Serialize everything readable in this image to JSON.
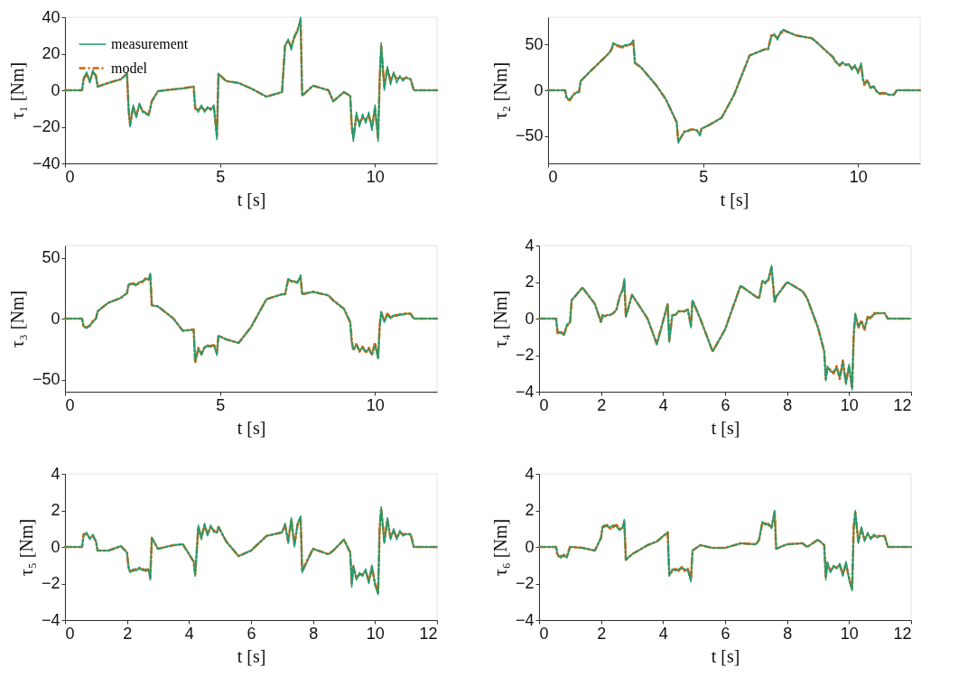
{
  "chart_data": [
    {
      "type": "line",
      "xlabel": "t [s]",
      "ylabel": "τ₁ [Nm]",
      "xlim": [
        0,
        12
      ],
      "xticks": [
        0,
        5,
        10
      ],
      "ylim": [
        -40,
        40
      ],
      "yticks": [
        -40,
        -20,
        0,
        20,
        40
      ],
      "legend": "top left",
      "x": [
        0,
        0.55,
        0.6,
        0.7,
        0.8,
        0.9,
        1.0,
        1.05,
        1.4,
        1.8,
        2.0,
        2.05,
        2.1,
        2.2,
        2.3,
        2.4,
        2.5,
        2.6,
        2.7,
        2.75,
        2.8,
        3.0,
        3.5,
        3.8,
        4.15,
        4.2,
        4.3,
        4.4,
        4.5,
        4.6,
        4.7,
        4.8,
        4.9,
        4.95,
        5.2,
        5.6,
        6.0,
        6.5,
        7.0,
        7.1,
        7.2,
        7.3,
        7.4,
        7.5,
        7.6,
        7.65,
        8.0,
        8.5,
        8.65,
        9.0,
        9.2,
        9.25,
        9.3,
        9.4,
        9.5,
        9.6,
        9.7,
        9.8,
        9.9,
        10.0,
        10.1,
        10.15,
        10.2,
        10.3,
        10.4,
        10.5,
        10.6,
        10.7,
        10.8,
        10.9,
        11.0,
        11.15,
        11.25,
        12
      ],
      "series": [
        {
          "name": "measurement",
          "color": "#1b9e77",
          "line_style": "solid",
          "values": [
            0,
            0,
            7,
            10,
            4,
            11,
            7,
            2,
            4,
            6,
            9,
            -9,
            -20,
            -8,
            -15,
            -7,
            -12,
            -12,
            -14,
            -10,
            -6,
            -0.5,
            0.5,
            1,
            2,
            -9,
            -12,
            -8,
            -12,
            -9,
            -11,
            -8,
            -27,
            9,
            5,
            4,
            1,
            -3.5,
            -1,
            24,
            28,
            22,
            30,
            32,
            40,
            -3,
            2.5,
            0,
            -6,
            -1,
            -3,
            -18,
            -28,
            -12,
            -20,
            -13,
            -18,
            -12,
            -22,
            -8,
            -28,
            5,
            26,
            0,
            13,
            3,
            10,
            4,
            8,
            5,
            7,
            6,
            0,
            0
          ]
        },
        {
          "name": "model",
          "color": "#d95f02",
          "line_style": "dashed",
          "values": [
            0,
            0,
            6,
            9,
            5,
            10,
            8,
            2,
            4,
            6,
            9,
            -10,
            -19,
            -9,
            -14,
            -8,
            -11,
            -13,
            -13,
            -10,
            -6,
            -0.5,
            0.5,
            1,
            2,
            -10,
            -11,
            -9,
            -11,
            -10,
            -10,
            -9,
            -25,
            9,
            5,
            4,
            1,
            -3.5,
            -1,
            25,
            27,
            24,
            29,
            33,
            38,
            -3,
            2.5,
            0,
            -6,
            -1,
            -3,
            -20,
            -26,
            -14,
            -18,
            -15,
            -16,
            -14,
            -20,
            -10,
            -26,
            6,
            24,
            2,
            12,
            5,
            9,
            6,
            7,
            6,
            7,
            6,
            0,
            0
          ]
        }
      ]
    },
    {
      "type": "line",
      "xlabel": "t [s]",
      "ylabel": "τ₂ [Nm]",
      "xlim": [
        0,
        12
      ],
      "xticks": [
        0,
        5,
        10
      ],
      "ylim": [
        -80,
        80
      ],
      "yticks": [
        -50,
        0,
        50
      ],
      "x": [
        0,
        0.55,
        0.6,
        0.7,
        0.8,
        0.9,
        1.0,
        1.05,
        1.4,
        1.8,
        2.0,
        2.05,
        2.1,
        2.2,
        2.3,
        2.4,
        2.5,
        2.6,
        2.7,
        2.75,
        2.8,
        3.0,
        3.5,
        3.8,
        4.15,
        4.2,
        4.3,
        4.4,
        4.5,
        4.6,
        4.7,
        4.8,
        4.9,
        4.95,
        5.2,
        5.6,
        6.0,
        6.5,
        7.0,
        7.1,
        7.2,
        7.3,
        7.4,
        7.5,
        7.6,
        7.65,
        8.0,
        8.5,
        8.65,
        9.0,
        9.2,
        9.25,
        9.3,
        9.4,
        9.5,
        9.6,
        9.7,
        9.8,
        9.9,
        10.0,
        10.1,
        10.15,
        10.2,
        10.3,
        10.4,
        10.5,
        10.6,
        10.7,
        10.8,
        10.9,
        11.0,
        11.15,
        11.25,
        12
      ],
      "series": [
        {
          "color": "#1b9e77",
          "line_style": "solid",
          "values": [
            0,
            0,
            -8,
            -10,
            -5,
            -3,
            -2,
            10,
            22,
            35,
            42,
            45,
            52,
            50,
            49,
            48,
            50,
            50,
            52,
            55,
            30,
            25,
            5,
            -10,
            -35,
            -58,
            -50,
            -46,
            -44,
            -43,
            -43,
            -44,
            -50,
            -42,
            -38,
            -30,
            -5,
            38,
            45,
            45,
            58,
            62,
            55,
            64,
            66,
            65,
            60,
            57,
            53,
            42,
            36,
            33,
            30,
            28,
            31,
            27,
            29,
            22,
            28,
            18,
            30,
            12,
            8,
            10,
            2,
            5,
            -2,
            -3,
            -4,
            -3,
            -5,
            -5,
            0,
            0
          ]
        },
        {
          "color": "#d95f02",
          "line_style": "dashed",
          "values": [
            0,
            0,
            -9,
            -11,
            -6,
            -2,
            -2,
            10,
            22,
            35,
            42,
            45,
            51,
            49,
            48,
            47,
            49,
            49,
            51,
            54,
            30,
            25,
            5,
            -10,
            -35,
            -56,
            -51,
            -45,
            -45,
            -43,
            -43,
            -44,
            -48,
            -42,
            -38,
            -30,
            -5,
            38,
            45,
            45,
            60,
            60,
            57,
            62,
            66,
            65,
            60,
            57,
            53,
            42,
            36,
            32,
            31,
            27,
            30,
            28,
            28,
            24,
            26,
            20,
            28,
            14,
            6,
            11,
            3,
            4,
            -1,
            -4,
            -3,
            -4,
            -5,
            -5,
            0,
            0
          ]
        }
      ]
    },
    {
      "type": "line",
      "xlabel": "t [s]",
      "ylabel": "τ₃ [Nm]",
      "xlim": [
        0,
        12
      ],
      "xticks": [
        0,
        5,
        10
      ],
      "ylim": [
        -60,
        60
      ],
      "yticks": [
        -50,
        0,
        50
      ],
      "x": [
        0,
        0.55,
        0.6,
        0.7,
        0.8,
        0.9,
        1.0,
        1.05,
        1.4,
        1.8,
        2.0,
        2.05,
        2.1,
        2.2,
        2.3,
        2.4,
        2.5,
        2.6,
        2.7,
        2.75,
        2.8,
        3.0,
        3.5,
        3.8,
        4.15,
        4.2,
        4.3,
        4.4,
        4.5,
        4.6,
        4.7,
        4.8,
        4.9,
        4.95,
        5.2,
        5.6,
        6.0,
        6.5,
        7.0,
        7.1,
        7.2,
        7.3,
        7.4,
        7.5,
        7.6,
        7.65,
        8.0,
        8.5,
        8.65,
        9.0,
        9.2,
        9.25,
        9.3,
        9.4,
        9.5,
        9.6,
        9.7,
        9.8,
        9.9,
        10.0,
        10.1,
        10.15,
        10.2,
        10.3,
        10.4,
        10.5,
        10.6,
        10.7,
        10.8,
        10.9,
        11.0,
        11.15,
        11.25,
        12
      ],
      "series": [
        {
          "color": "#1b9e77",
          "line_style": "solid",
          "values": [
            0,
            0,
            -6,
            -8,
            -5,
            -3,
            0,
            6,
            13,
            17,
            21,
            28,
            29,
            28,
            28,
            30,
            31,
            32,
            33,
            37,
            11,
            10,
            0,
            -10,
            -9,
            -35,
            -25,
            -30,
            -23,
            -23,
            -22,
            -22,
            -30,
            -14,
            -17,
            -20,
            -7,
            16,
            20,
            20,
            33,
            30,
            31,
            29,
            36,
            20,
            22,
            19,
            15,
            8,
            -3,
            -20,
            -25,
            -22,
            -26,
            -24,
            -27,
            -25,
            -29,
            -22,
            -33,
            -8,
            6,
            -3,
            3,
            0,
            3,
            2,
            4,
            3,
            4,
            4,
            0,
            0
          ]
        },
        {
          "color": "#d95f02",
          "line_style": "dashed",
          "values": [
            0,
            0,
            -7,
            -7,
            -6,
            -2,
            0,
            6,
            13,
            17,
            21,
            28,
            28,
            29,
            27,
            30,
            30,
            33,
            32,
            36,
            11,
            10,
            0,
            -10,
            -9,
            -36,
            -24,
            -29,
            -24,
            -22,
            -23,
            -21,
            -28,
            -14,
            -17,
            -20,
            -7,
            16,
            20,
            20,
            32,
            31,
            30,
            30,
            34,
            20,
            22,
            19,
            15,
            8,
            -3,
            -18,
            -26,
            -21,
            -27,
            -23,
            -28,
            -24,
            -30,
            -20,
            -32,
            -6,
            5,
            -2,
            4,
            1,
            2,
            3,
            3,
            4,
            4,
            4,
            0,
            0
          ]
        }
      ]
    },
    {
      "type": "line",
      "xlabel": "t [s]",
      "ylabel": "τ₄ [Nm]",
      "xlim": [
        0,
        12
      ],
      "xticks": [
        0,
        2,
        4,
        6,
        8,
        10,
        12
      ],
      "ylim": [
        -4,
        4
      ],
      "yticks": [
        -4,
        -2,
        0,
        2,
        4
      ],
      "x": [
        0,
        0.55,
        0.6,
        0.7,
        0.8,
        0.9,
        1.0,
        1.05,
        1.4,
        1.8,
        2.0,
        2.05,
        2.1,
        2.2,
        2.3,
        2.4,
        2.5,
        2.6,
        2.7,
        2.75,
        2.8,
        3.0,
        3.5,
        3.8,
        4.15,
        4.2,
        4.3,
        4.4,
        4.5,
        4.6,
        4.7,
        4.8,
        4.9,
        4.95,
        5.2,
        5.6,
        6.0,
        6.5,
        7.0,
        7.1,
        7.2,
        7.3,
        7.4,
        7.5,
        7.6,
        7.65,
        8.0,
        8.5,
        8.65,
        9.0,
        9.2,
        9.25,
        9.3,
        9.4,
        9.5,
        9.6,
        9.7,
        9.8,
        9.9,
        10.0,
        10.1,
        10.15,
        10.2,
        10.3,
        10.4,
        10.5,
        10.6,
        10.7,
        10.8,
        10.9,
        11.0,
        11.15,
        11.25,
        12
      ],
      "series": [
        {
          "color": "#1b9e77",
          "line_style": "solid",
          "values": [
            0,
            0,
            -0.7,
            -0.8,
            -0.9,
            -0.3,
            -0.2,
            1.0,
            1.7,
            0.8,
            -0.2,
            0.2,
            0.1,
            0.2,
            0.2,
            0.3,
            0.5,
            1.2,
            1.6,
            2.2,
            0.1,
            1.3,
            0,
            -1.4,
            0.8,
            -1.3,
            0.2,
            0.2,
            0.4,
            0.4,
            0.4,
            0.5,
            -0.5,
            1.0,
            0,
            -1.8,
            -0.6,
            1.8,
            1.2,
            1.1,
            2.1,
            1.9,
            2.2,
            2.9,
            0.9,
            1.2,
            2.0,
            1.5,
            1.1,
            -0.5,
            -1.8,
            -3.4,
            -2.6,
            -2.9,
            -2.9,
            -2.7,
            -3.2,
            -2.4,
            -3.6,
            -2.5,
            -3.9,
            -1.0,
            0.3,
            -0.4,
            -0.2,
            -0.5,
            0,
            0.1,
            0.2,
            0.3,
            0.3,
            0.3,
            0,
            0
          ]
        },
        {
          "color": "#d95f02",
          "line_style": "dashed",
          "values": [
            0,
            0,
            -0.8,
            -0.7,
            -0.9,
            -0.4,
            -0.2,
            1.0,
            1.7,
            0.8,
            -0.2,
            0.2,
            0.1,
            0.2,
            0.2,
            0.3,
            0.5,
            1.2,
            1.6,
            2.1,
            0.1,
            1.3,
            0,
            -1.4,
            0.8,
            -1.2,
            0.2,
            0.2,
            0.4,
            0.4,
            0.4,
            0.5,
            -0.4,
            1.0,
            0,
            -1.8,
            -0.6,
            1.8,
            1.2,
            1.1,
            2.0,
            2.0,
            2.1,
            2.8,
            0.9,
            1.2,
            2.0,
            1.5,
            1.1,
            -0.5,
            -1.8,
            -3.3,
            -2.7,
            -2.8,
            -3.0,
            -2.6,
            -3.3,
            -2.3,
            -3.5,
            -2.6,
            -3.8,
            -0.9,
            0.2,
            -0.5,
            -0.1,
            -0.6,
            0.1,
            0,
            0.3,
            0.3,
            0.3,
            0.3,
            0,
            0
          ]
        }
      ]
    },
    {
      "type": "line",
      "xlabel": "t [s]",
      "ylabel": "τ₅ [Nm]",
      "xlim": [
        0,
        12
      ],
      "xticks": [
        0,
        2,
        4,
        6,
        8,
        10,
        12
      ],
      "ylim": [
        -4,
        4
      ],
      "yticks": [
        -4,
        -2,
        0,
        2,
        4
      ],
      "x": [
        0,
        0.55,
        0.6,
        0.7,
        0.8,
        0.9,
        1.0,
        1.05,
        1.4,
        1.8,
        2.0,
        2.05,
        2.1,
        2.2,
        2.3,
        2.4,
        2.5,
        2.6,
        2.7,
        2.75,
        2.8,
        3.0,
        3.5,
        3.8,
        4.15,
        4.2,
        4.3,
        4.4,
        4.5,
        4.6,
        4.7,
        4.8,
        4.9,
        4.95,
        5.2,
        5.6,
        6.0,
        6.5,
        7.0,
        7.1,
        7.2,
        7.3,
        7.4,
        7.5,
        7.6,
        7.65,
        8.0,
        8.5,
        8.65,
        9.0,
        9.2,
        9.25,
        9.3,
        9.4,
        9.5,
        9.6,
        9.7,
        9.8,
        9.9,
        10.0,
        10.1,
        10.15,
        10.2,
        10.3,
        10.4,
        10.5,
        10.6,
        10.7,
        10.8,
        10.9,
        11.0,
        11.15,
        11.25,
        12
      ],
      "series": [
        {
          "color": "#1b9e77",
          "line_style": "solid",
          "values": [
            0,
            0,
            0.6,
            0.8,
            0.4,
            0.7,
            0.3,
            -0.2,
            -0.2,
            0.05,
            -0.3,
            -1.2,
            -1.4,
            -1.2,
            -1.3,
            -1.1,
            -1.3,
            -1.2,
            -1.3,
            -1.8,
            0.5,
            -0.1,
            0.1,
            0.15,
            -0.8,
            -1.6,
            1.2,
            0.4,
            1.3,
            0.6,
            1.2,
            0.8,
            0.8,
            1.1,
            0.3,
            -0.5,
            -0.2,
            0.6,
            0.8,
            1.3,
            0.2,
            1.6,
            0,
            1.3,
            1.7,
            -1.4,
            -0.1,
            -0.4,
            -0.2,
            0.4,
            -0.3,
            -2.2,
            -1.0,
            -1.8,
            -1.4,
            -1.6,
            -1.2,
            -2.0,
            -1.0,
            -2.1,
            -2.6,
            1.0,
            2.2,
            0.2,
            1.6,
            0.4,
            1.0,
            0.4,
            0.9,
            0.6,
            0.7,
            0.7,
            0,
            0
          ]
        },
        {
          "color": "#d95f02",
          "line_style": "dashed",
          "values": [
            0,
            0,
            0.7,
            0.7,
            0.5,
            0.6,
            0.3,
            -0.2,
            -0.2,
            0.05,
            -0.3,
            -1.1,
            -1.3,
            -1.3,
            -1.2,
            -1.2,
            -1.2,
            -1.3,
            -1.2,
            -1.7,
            0.5,
            -0.1,
            0.1,
            0.15,
            -0.8,
            -1.5,
            1.1,
            0.5,
            1.2,
            0.7,
            1.1,
            0.9,
            0.8,
            1.1,
            0.3,
            -0.5,
            -0.2,
            0.6,
            0.8,
            1.2,
            0.3,
            1.5,
            0.1,
            1.2,
            1.6,
            -1.3,
            -0.1,
            -0.4,
            -0.2,
            0.4,
            -0.3,
            -2.0,
            -1.1,
            -1.7,
            -1.5,
            -1.5,
            -1.3,
            -1.9,
            -1.1,
            -2.0,
            -2.5,
            1.1,
            2.1,
            0.3,
            1.5,
            0.5,
            0.9,
            0.5,
            0.8,
            0.7,
            0.7,
            0.7,
            0,
            0
          ]
        }
      ]
    },
    {
      "type": "line",
      "xlabel": "t [s]",
      "ylabel": "τ₆ [Nm]",
      "xlim": [
        0,
        12
      ],
      "xticks": [
        0,
        2,
        4,
        6,
        8,
        10,
        12
      ],
      "ylim": [
        -4,
        4
      ],
      "yticks": [
        -4,
        -2,
        0,
        2,
        4
      ],
      "x": [
        0,
        0.55,
        0.6,
        0.7,
        0.8,
        0.9,
        1.0,
        1.05,
        1.4,
        1.8,
        2.0,
        2.05,
        2.1,
        2.2,
        2.3,
        2.4,
        2.5,
        2.6,
        2.7,
        2.75,
        2.8,
        3.0,
        3.5,
        3.8,
        4.15,
        4.2,
        4.3,
        4.4,
        4.5,
        4.6,
        4.7,
        4.8,
        4.9,
        4.95,
        5.2,
        5.6,
        6.0,
        6.5,
        7.0,
        7.1,
        7.2,
        7.3,
        7.4,
        7.5,
        7.6,
        7.65,
        8.0,
        8.5,
        8.65,
        9.0,
        9.2,
        9.25,
        9.3,
        9.4,
        9.5,
        9.6,
        9.7,
        9.8,
        9.9,
        10.0,
        10.1,
        10.15,
        10.2,
        10.3,
        10.4,
        10.5,
        10.6,
        10.7,
        10.8,
        10.9,
        11.0,
        11.15,
        11.25,
        12
      ],
      "series": [
        {
          "color": "#1b9e77",
          "line_style": "solid",
          "values": [
            0,
            0,
            -0.4,
            -0.6,
            -0.4,
            -0.6,
            0,
            0,
            -0.05,
            -0.2,
            0.5,
            1.1,
            1.2,
            1.1,
            1.1,
            1.2,
            1.1,
            0.9,
            1.1,
            1.5,
            -0.7,
            -0.4,
            0.1,
            0.3,
            0.8,
            -1.6,
            -1.2,
            -1.3,
            -1.2,
            -1.2,
            -1.2,
            -1.3,
            -1.9,
            -0.2,
            0.1,
            -0.05,
            -0.05,
            0.2,
            0.15,
            0.4,
            1.4,
            1.2,
            1.3,
            1.0,
            2.0,
            -0.1,
            0.15,
            0.2,
            0,
            0.4,
            0.1,
            -1.8,
            -0.8,
            -1.4,
            -1.0,
            -1.2,
            -0.9,
            -1.6,
            -0.8,
            -1.8,
            -2.4,
            1.0,
            2.0,
            0.2,
            1.1,
            0.3,
            0.8,
            0.4,
            0.7,
            0.5,
            0.6,
            0.6,
            0,
            0
          ]
        },
        {
          "color": "#d95f02",
          "line_style": "dashed",
          "values": [
            0,
            0,
            -0.5,
            -0.5,
            -0.5,
            -0.5,
            0,
            0,
            -0.05,
            -0.2,
            0.5,
            1.1,
            1.1,
            1.2,
            1.0,
            1.1,
            1.2,
            1.0,
            1.0,
            1.4,
            -0.7,
            -0.4,
            0.1,
            0.3,
            0.8,
            -1.5,
            -1.3,
            -1.2,
            -1.3,
            -1.1,
            -1.3,
            -1.2,
            -1.8,
            -0.2,
            0.1,
            -0.05,
            -0.05,
            0.2,
            0.15,
            0.4,
            1.3,
            1.3,
            1.2,
            1.1,
            1.9,
            -0.1,
            0.15,
            0.2,
            0,
            0.4,
            0.1,
            -1.7,
            -0.9,
            -1.3,
            -1.1,
            -1.1,
            -1.0,
            -1.5,
            -0.9,
            -1.7,
            -2.3,
            1.1,
            1.9,
            0.3,
            1.0,
            0.4,
            0.7,
            0.5,
            0.6,
            0.6,
            0.6,
            0.6,
            0,
            0
          ]
        }
      ]
    }
  ]
}
